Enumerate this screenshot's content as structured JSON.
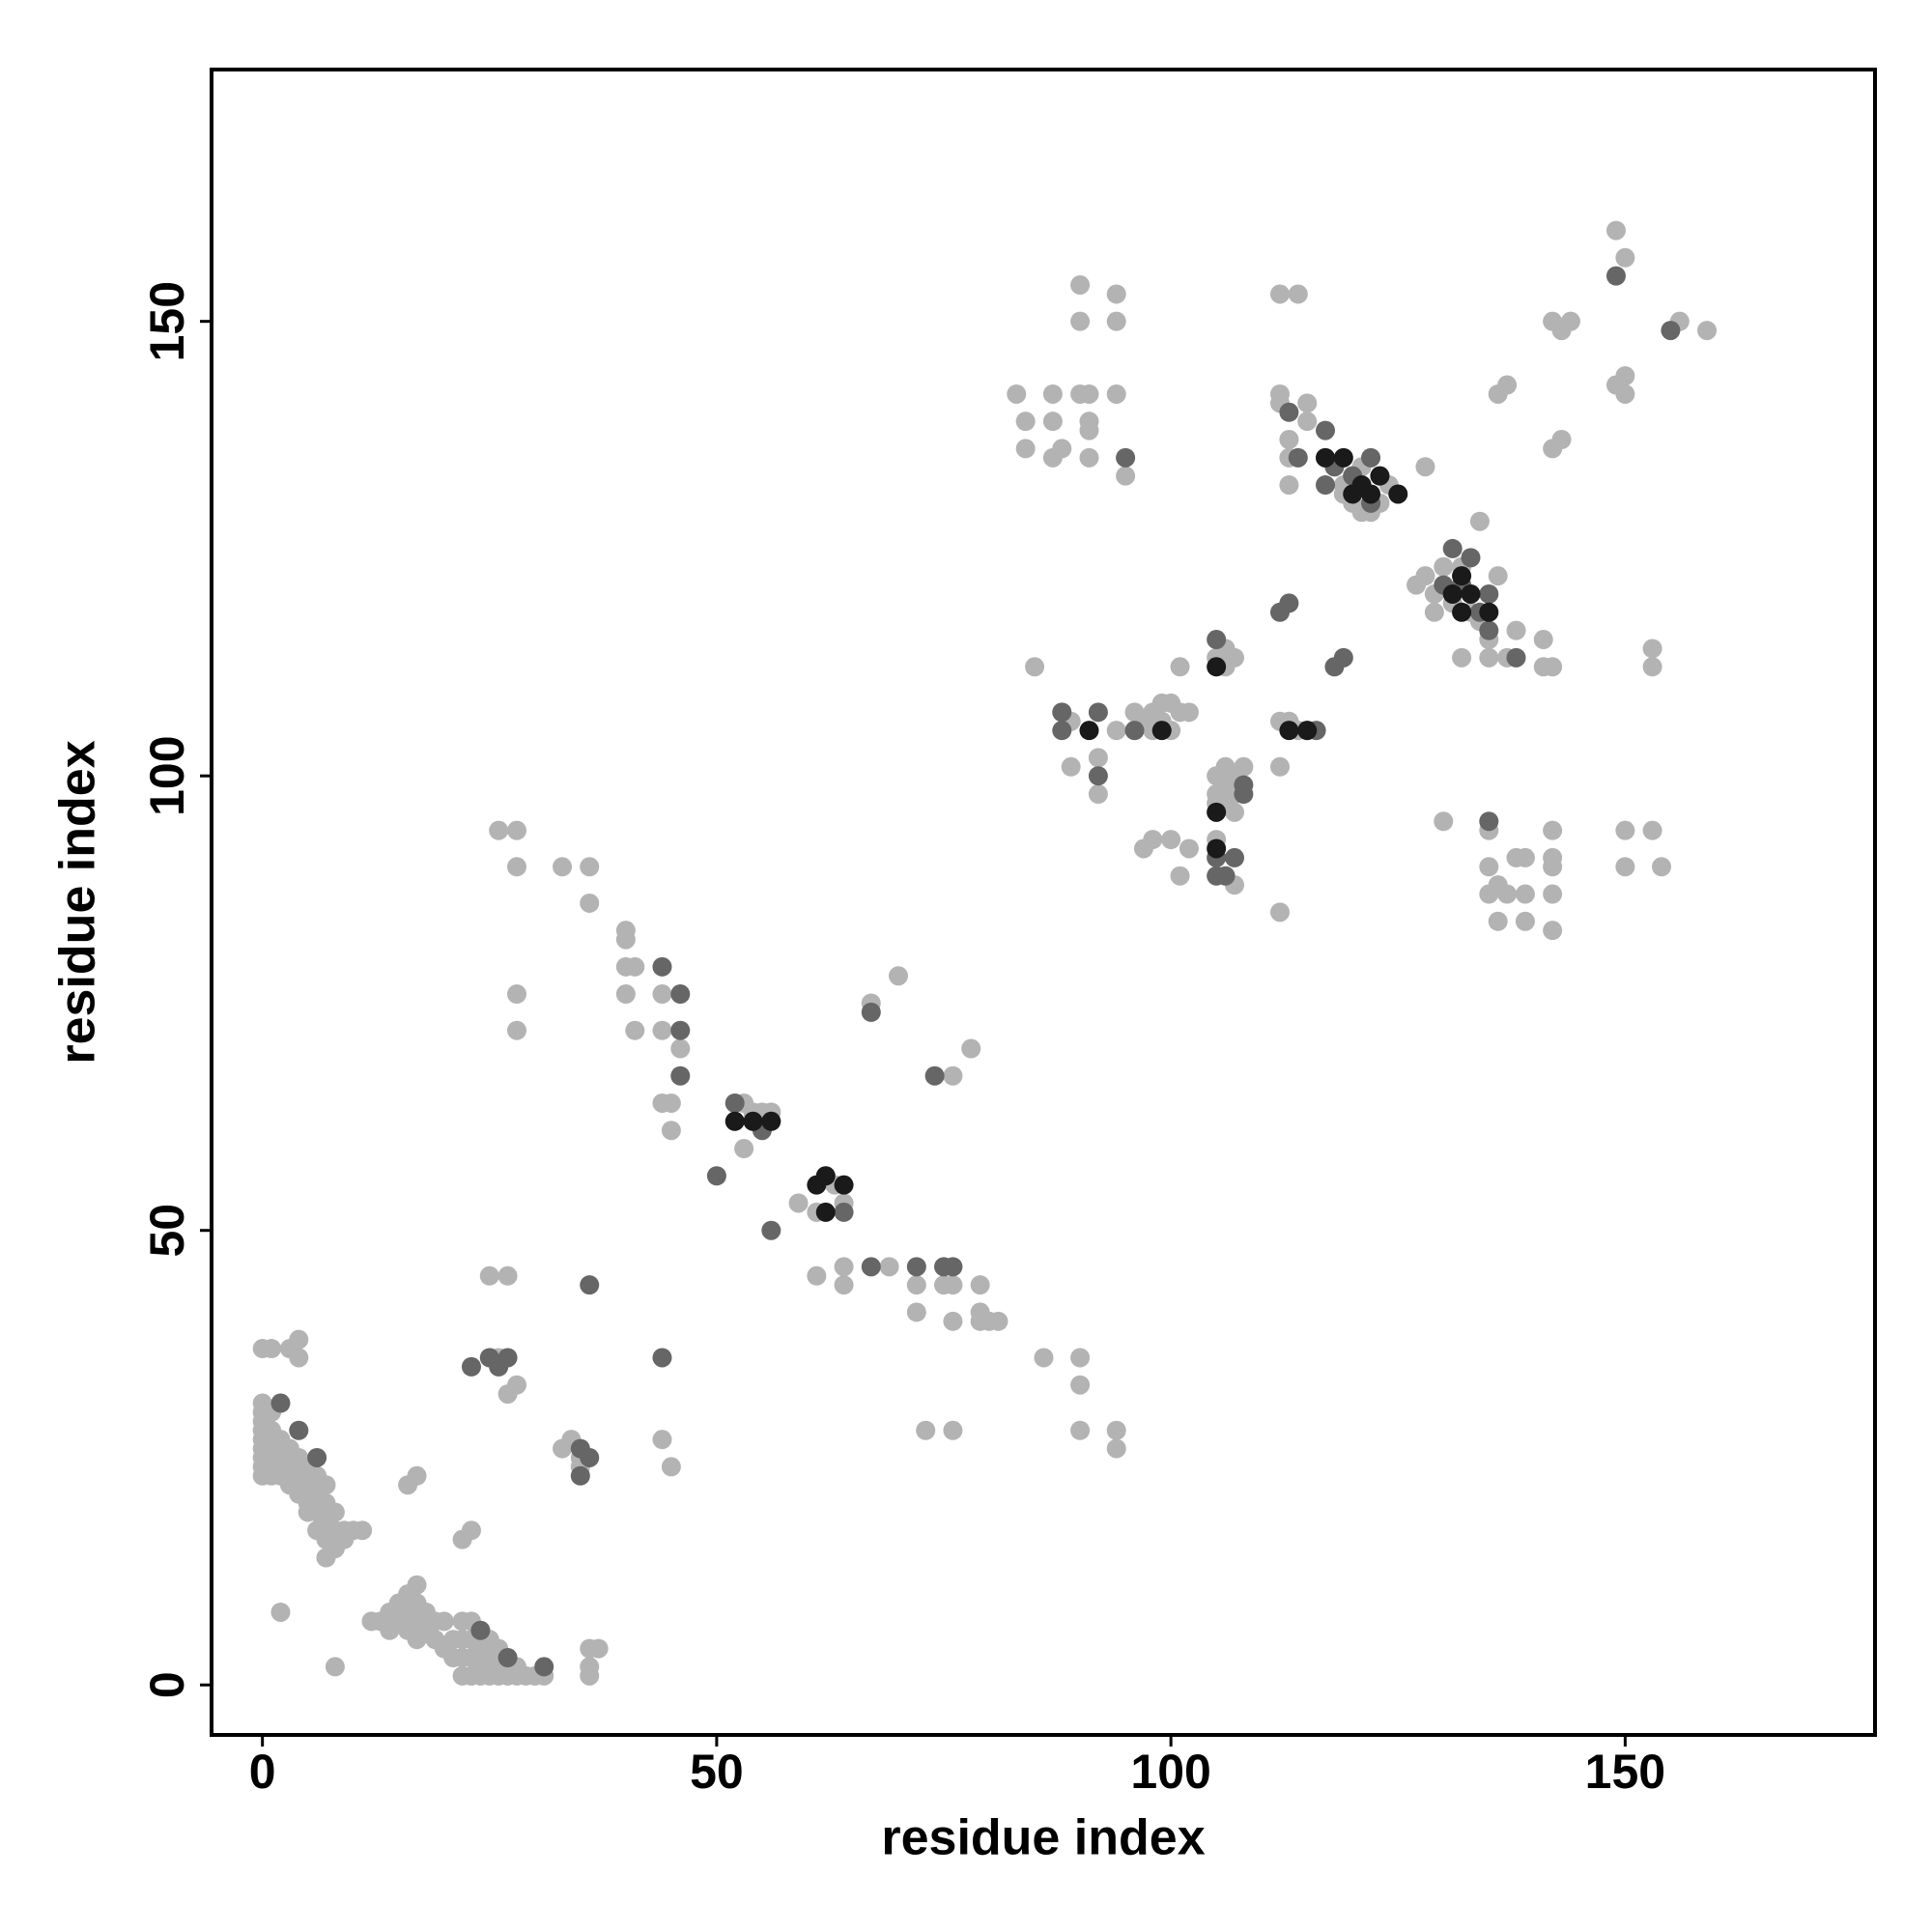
{
  "chart_data": {
    "type": "scatter",
    "x_label": "residue index",
    "y_label": "residue index",
    "xlim": [
      -5.6,
      177.5
    ],
    "ylim": [
      -5.5,
      177.7
    ],
    "xticks": [
      0,
      50,
      100,
      150
    ],
    "yticks": [
      0,
      50,
      100,
      150
    ],
    "grid": false,
    "series": [
      {
        "color": "#b3b3b3",
        "x": [
          0,
          1,
          3,
          4,
          4,
          0,
          0,
          0,
          0,
          0,
          0,
          0,
          0,
          0,
          1,
          1,
          1,
          1,
          1,
          2,
          2,
          2,
          3,
          3,
          3,
          4,
          4,
          4,
          5,
          5,
          5,
          5,
          6,
          6,
          6,
          6,
          7,
          7,
          7,
          7,
          7,
          8,
          8,
          8,
          9,
          9,
          10,
          11,
          2,
          8,
          12,
          13,
          14,
          14,
          15,
          15,
          16,
          16,
          16,
          17,
          17,
          17,
          17,
          18,
          18,
          19,
          19,
          20,
          20,
          21,
          21,
          22,
          22,
          22,
          22,
          23,
          23,
          23,
          23,
          24,
          24,
          24,
          24,
          25,
          25,
          25,
          26,
          26,
          26,
          27,
          27,
          28,
          28,
          29,
          30,
          31,
          36,
          37,
          36,
          36,
          16,
          17,
          23,
          22,
          25,
          27,
          27,
          28,
          26,
          33,
          34,
          35,
          35,
          44,
          45,
          26,
          28,
          28,
          33,
          36,
          36,
          28,
          28,
          40,
          40,
          40,
          41,
          40,
          41,
          44,
          44,
          45,
          46,
          44,
          45,
          53,
          54,
          55,
          56,
          53,
          59,
          61,
          62,
          63,
          64,
          61,
          64,
          64,
          69,
          72,
          72,
          75,
          76,
          76,
          79,
          79,
          80,
          81,
          79,
          86,
          90,
          90,
          90,
          94,
          94,
          73,
          76,
          67,
          70,
          76,
          78,
          90,
          94,
          90,
          94,
          83,
          87,
          90,
          91,
          94,
          84,
          87,
          91,
          91,
          84,
          87,
          88,
          91,
          95,
          85,
          88,
          89,
          89,
          92,
          92,
          94,
          97,
          98,
          98,
          99,
          99,
          100,
          101,
          100,
          102,
          96,
          96,
          97,
          98,
          100,
          101,
          102,
          101,
          105,
          106,
          106,
          107,
          105,
          105,
          105,
          106,
          106,
          106,
          107,
          107,
          107,
          108,
          107,
          105,
          112,
          114,
          112,
          112,
          113,
          115,
          115,
          113,
          113,
          117,
          118,
          119,
          119,
          120,
          120,
          121,
          121,
          122,
          123,
          123,
          124,
          128,
          127,
          128,
          129,
          129,
          130,
          131,
          132,
          133,
          134,
          135,
          132,
          135,
          134,
          136,
          137,
          138,
          141,
          141,
          142,
          112,
          113,
          114,
          112,
          112,
          136,
          137,
          142,
          143,
          142,
          143,
          144,
          149,
          150,
          149,
          150,
          150,
          156,
          159,
          153,
          153,
          130,
          135,
          135,
          135,
          136,
          136,
          137,
          138,
          139,
          139,
          139,
          142,
          142,
          142,
          142,
          142,
          150,
          150,
          153,
          154
        ],
        "values": [
          37,
          37,
          37,
          38,
          36,
          31,
          30,
          29,
          28,
          27,
          26,
          25,
          24,
          23,
          30,
          28,
          26,
          24,
          23,
          27,
          25,
          23,
          26,
          24,
          22,
          25,
          23,
          21,
          24,
          22,
          20,
          19,
          23,
          21,
          19,
          17,
          22,
          20,
          18,
          16,
          14,
          19,
          17,
          15,
          17,
          16,
          17,
          17,
          8,
          2,
          7,
          7,
          8,
          6,
          9,
          7,
          10,
          8,
          6,
          11,
          9,
          7,
          5,
          8,
          6,
          7,
          5,
          7,
          4,
          5,
          3,
          7,
          5,
          3,
          1,
          7,
          5,
          3,
          1,
          6,
          4,
          2,
          1,
          5,
          3,
          1,
          4,
          2,
          1,
          3,
          1,
          2,
          1,
          1,
          1,
          1,
          4,
          4,
          1,
          2,
          22,
          23,
          17,
          16,
          45,
          45,
          32,
          33,
          36,
          26,
          27,
          24,
          25,
          27,
          24,
          94,
          94,
          90,
          90,
          90,
          86,
          76,
          72,
          83,
          82,
          79,
          79,
          76,
          72,
          76,
          72,
          64,
          70,
          64,
          61,
          64,
          63,
          63,
          63,
          59,
          53,
          52,
          56,
          55,
          53,
          45,
          46,
          44,
          46,
          44,
          41,
          44,
          44,
          40,
          44,
          41,
          40,
          40,
          40,
          36,
          36,
          33,
          28,
          28,
          26,
          28,
          28,
          75,
          78,
          67,
          70,
          154,
          153,
          150,
          150,
          142,
          142,
          142,
          142,
          142,
          139,
          139,
          139,
          138,
          136,
          135,
          136,
          135,
          133,
          112,
          107,
          106,
          101,
          102,
          98,
          105,
          106,
          105,
          107,
          108,
          106,
          105,
          107,
          108,
          107,
          105,
          107,
          92,
          93,
          93,
          89,
          92,
          112,
          113,
          114,
          112,
          113,
          100,
          98,
          97,
          101,
          99,
          97,
          100,
          98,
          96,
          101,
          88,
          93,
          153,
          153,
          142,
          141,
          137,
          141,
          139,
          135,
          132,
          135,
          134,
          132,
          131,
          130,
          133,
          134,
          129,
          129,
          130,
          133,
          132,
          134,
          121,
          122,
          120,
          118,
          123,
          119,
          123,
          118,
          117,
          115,
          113,
          113,
          128,
          122,
          113,
          116,
          115,
          112,
          112,
          106,
          106,
          105,
          101,
          85,
          142,
          143,
          136,
          137,
          150,
          149,
          150,
          160,
          157,
          143,
          144,
          142,
          150,
          149,
          114,
          112,
          95,
          94,
          90,
          87,
          88,
          84,
          87,
          91,
          91,
          87,
          84,
          94,
          91,
          90,
          87,
          83,
          94,
          90,
          94,
          90
        ]
      },
      {
        "color": "#666666",
        "x": [
          2,
          4,
          6,
          23,
          25,
          26,
          27,
          24,
          27,
          31,
          36,
          35,
          36,
          35,
          44,
          44,
          46,
          46,
          46,
          50,
          52,
          55,
          56,
          64,
          67,
          67,
          72,
          75,
          76,
          74,
          88,
          88,
          92,
          92,
          96,
          105,
          105,
          105,
          106,
          107,
          108,
          108,
          112,
          113,
          113,
          114,
          115,
          116,
          117,
          117,
          118,
          118,
          119,
          120,
          122,
          122,
          130,
          131,
          132,
          133,
          134,
          135,
          135,
          135,
          138,
          149,
          155,
          95
        ],
        "values": [
          31,
          28,
          25,
          35,
          36,
          35,
          36,
          6,
          3,
          2,
          44,
          26,
          25,
          23,
          36,
          79,
          76,
          72,
          67,
          56,
          64,
          61,
          50,
          52,
          46,
          74,
          46,
          46,
          46,
          67,
          107,
          105,
          107,
          100,
          105,
          115,
          91,
          89,
          89,
          91,
          99,
          98,
          118,
          119,
          140,
          135,
          105,
          105,
          138,
          132,
          134,
          112,
          113,
          133,
          135,
          130,
          121,
          125,
          121,
          124,
          118,
          120,
          116,
          95,
          113,
          155,
          149,
          135
        ]
      },
      {
        "color": "#1a1a1a",
        "x": [
          91,
          99,
          105,
          105,
          105,
          113,
          115,
          117,
          119,
          120,
          121,
          122,
          123,
          125,
          131,
          132,
          133,
          132,
          135,
          52,
          54,
          56,
          61,
          62,
          62,
          64
        ],
        "values": [
          105,
          105,
          112,
          92,
          96,
          105,
          105,
          135,
          135,
          131,
          132,
          131,
          133,
          131,
          120,
          122,
          120,
          118,
          118,
          62,
          62,
          62,
          55,
          52,
          56,
          55
        ]
      }
    ]
  }
}
